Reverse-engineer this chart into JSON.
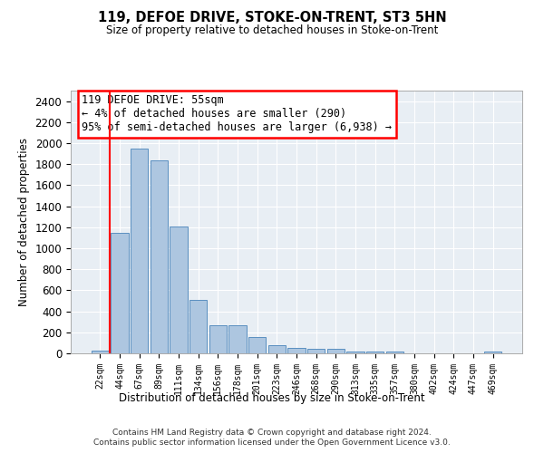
{
  "title1": "119, DEFOE DRIVE, STOKE-ON-TRENT, ST3 5HN",
  "title2": "Size of property relative to detached houses in Stoke-on-Trent",
  "xlabel": "Distribution of detached houses by size in Stoke-on-Trent",
  "ylabel": "Number of detached properties",
  "footer1": "Contains HM Land Registry data © Crown copyright and database right 2024.",
  "footer2": "Contains public sector information licensed under the Open Government Licence v3.0.",
  "categories": [
    "22sqm",
    "44sqm",
    "67sqm",
    "89sqm",
    "111sqm",
    "134sqm",
    "156sqm",
    "178sqm",
    "201sqm",
    "223sqm",
    "246sqm",
    "268sqm",
    "290sqm",
    "313sqm",
    "335sqm",
    "357sqm",
    "380sqm",
    "402sqm",
    "424sqm",
    "447sqm",
    "469sqm"
  ],
  "values": [
    30,
    1150,
    1950,
    1840,
    1210,
    510,
    265,
    265,
    155,
    80,
    50,
    45,
    45,
    20,
    15,
    20,
    0,
    0,
    0,
    0,
    20
  ],
  "bar_color": "#adc6e0",
  "bar_edgecolor": "#5a8fc0",
  "ylim": [
    0,
    2500
  ],
  "yticks": [
    0,
    200,
    400,
    600,
    800,
    1000,
    1200,
    1400,
    1600,
    1800,
    2000,
    2200,
    2400
  ],
  "property_line_x": 1.0,
  "property_line_color": "red",
  "annotation_text": "119 DEFOE DRIVE: 55sqm\n← 4% of detached houses are smaller (290)\n95% of semi-detached houses are larger (6,938) →",
  "bg_color": "#e8eef4",
  "grid_color": "#ffffff",
  "title1_fontsize": 10.5,
  "title2_fontsize": 8.5
}
